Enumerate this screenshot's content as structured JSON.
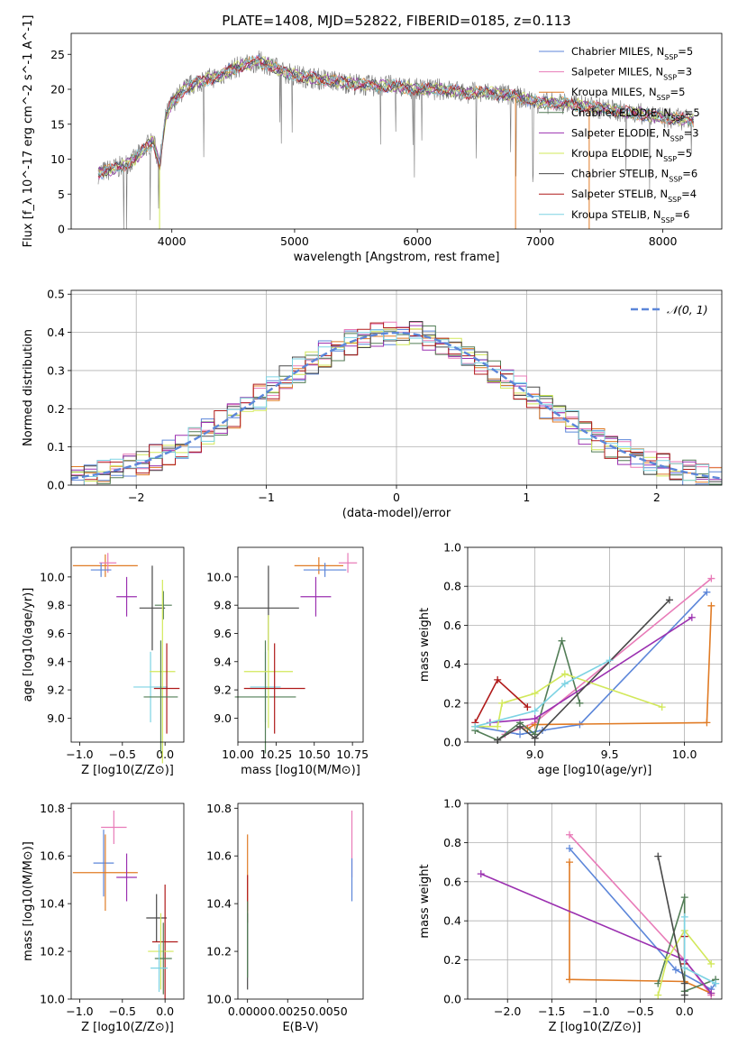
{
  "figure": {
    "title": "PLATE=1408, MJD=52822, FIBERID=0185, z=0.113"
  },
  "models": [
    {
      "name": "Chabrier MILES",
      "nssp": "5",
      "color": "#5c86d9"
    },
    {
      "name": "Salpeter MILES",
      "nssp": "3",
      "color": "#e87bb8"
    },
    {
      "name": "Kroupa MILES",
      "nssp": "5",
      "color": "#e07b25"
    },
    {
      "name": "Chabrier ELODIE",
      "nssp": "5",
      "color": "#527d56"
    },
    {
      "name": "Salpeter ELODIE",
      "nssp": "3",
      "color": "#9b30b0"
    },
    {
      "name": "Kroupa ELODIE",
      "nssp": "5",
      "color": "#d2e85a"
    },
    {
      "name": "Chabrier STELIB",
      "nssp": "6",
      "color": "#484848"
    },
    {
      "name": "Salpeter STELIB",
      "nssp": "4",
      "color": "#b01a1a"
    },
    {
      "name": "Kroupa STELIB",
      "nssp": "6",
      "color": "#7dd3e3"
    }
  ],
  "chart_data": [
    {
      "id": "spectrum",
      "type": "line",
      "title": "PLATE=1408, MJD=52822, FIBERID=0185, z=0.113",
      "xlabel": "wavelength [Angstrom, rest frame]",
      "ylabel": "Flux [f_λ 10^-17 erg cm^-2 s^-1 A^-1]",
      "xlim": [
        3180,
        8480
      ],
      "ylim": [
        0,
        28
      ],
      "xticks": [
        "4000",
        "5000",
        "6000",
        "7000",
        "8000"
      ],
      "yticks": [
        "0",
        "5",
        "10",
        "15",
        "20",
        "25"
      ],
      "spectrum_continuum": {
        "x": [
          3400,
          3500,
          3600,
          3700,
          3800,
          3850,
          3900,
          3950,
          4000,
          4100,
          4200,
          4300,
          4400,
          4500,
          4600,
          4700,
          4800,
          4900,
          5000,
          5200,
          5400,
          5600,
          5800,
          6000,
          6200,
          6400,
          6600,
          6800,
          7000,
          7200,
          7400,
          7600,
          7800,
          8000,
          8250
        ],
        "y": [
          8,
          8.5,
          9,
          10,
          12,
          12.5,
          9,
          16,
          18,
          20,
          21,
          21.5,
          22,
          23,
          23.5,
          24,
          23.5,
          22.5,
          22,
          21.5,
          21,
          20.5,
          20.5,
          20,
          20,
          19.5,
          19.5,
          19,
          18,
          18,
          17.5,
          17,
          16.5,
          16,
          15.5
        ]
      },
      "model_vertical_spikes_x": [
        3900,
        6800,
        7400
      ],
      "grid": false,
      "legend": "top-right"
    },
    {
      "id": "residual-histogram",
      "type": "line",
      "xlabel": "(data-model)/error",
      "ylabel": "Normed distribution",
      "xlim": [
        -2.5,
        2.5
      ],
      "ylim": [
        0,
        0.51
      ],
      "xticks": [
        "−2",
        "−1",
        "0",
        "1",
        "2"
      ],
      "yticks": [
        "0.0",
        "0.1",
        "0.2",
        "0.3",
        "0.4",
        "0.5"
      ],
      "series": [
        {
          "name": "𝒩(0, 1)",
          "function": "normal",
          "mean": 0,
          "sigma": 1
        }
      ],
      "histograms_bin_width": 0.1,
      "grid": true,
      "legend": "top-right"
    },
    {
      "id": "age-vs-Z",
      "type": "scatter",
      "xlabel": "Z [log10(Z/Z⊙)]",
      "ylabel": "age [log10(age/yr)]",
      "xlim": [
        -1.1,
        0.22
      ],
      "ylim": [
        8.83,
        10.21
      ],
      "xticks": [
        "−1.0",
        "−0.5",
        "0.0"
      ],
      "yticks": [
        "9.0",
        "9.2",
        "9.4",
        "9.6",
        "9.8",
        "10.0"
      ],
      "points": [
        {
          "model": "Kroupa MILES",
          "x": -0.7,
          "xerr": 0.38,
          "y": 10.08,
          "yerr": 0.08
        },
        {
          "model": "Salpeter MILES",
          "x": -0.67,
          "xerr": 0.1,
          "y": 10.1,
          "yerr": 0.07
        },
        {
          "model": "Chabrier MILES",
          "x": -0.75,
          "xerr": 0.12,
          "y": 10.05,
          "yerr": 0.05
        },
        {
          "model": "Salpeter ELODIE",
          "x": -0.45,
          "xerr": 0.12,
          "y": 9.86,
          "yerr": 0.14
        },
        {
          "model": "Chabrier STELIB",
          "x": -0.15,
          "xerr": 0.15,
          "y": 9.78,
          "yerr": 0.3
        },
        {
          "model": "Kroupa STELIB",
          "x": -0.17,
          "xerr": 0.2,
          "y": 9.22,
          "yerr": 0.25
        },
        {
          "model": "Chabrier ELODIE",
          "x": -0.02,
          "xerr": 0.1,
          "y": 9.8,
          "yerr": 0.1
        },
        {
          "model": "Kroupa ELODIE",
          "x": -0.03,
          "xerr": 0.15,
          "y": 9.33,
          "yerr": 0.65
        },
        {
          "model": "Salpeter STELIB",
          "x": 0.02,
          "xerr": 0.15,
          "y": 9.21,
          "yerr": 0.32
        },
        {
          "model": "Chabrier ELODIE",
          "x": -0.05,
          "xerr": 0.2,
          "y": 9.15,
          "yerr": 0.4
        }
      ]
    },
    {
      "id": "age-vs-mass",
      "type": "scatter",
      "xlabel": "mass [log10(M/M⊙)]",
      "ylabel": "",
      "xlim": [
        10.0,
        10.82
      ],
      "ylim": [
        8.83,
        10.21
      ],
      "xticks": [
        "10.00",
        "10.25",
        "10.50",
        "10.75"
      ],
      "yticks": [
        "9.0",
        "9.2",
        "9.4",
        "9.6",
        "9.8",
        "10.0"
      ],
      "points": [
        {
          "model": "Kroupa MILES",
          "x": 10.53,
          "xerr": 0.16,
          "y": 10.08,
          "yerr": 0.06
        },
        {
          "model": "Salpeter MILES",
          "x": 10.72,
          "xerr": 0.06,
          "y": 10.1,
          "yerr": 0.07
        },
        {
          "model": "Chabrier MILES",
          "x": 10.57,
          "xerr": 0.14,
          "y": 10.05,
          "yerr": 0.05
        },
        {
          "model": "Salpeter ELODIE",
          "x": 10.51,
          "xerr": 0.1,
          "y": 9.86,
          "yerr": 0.14
        },
        {
          "model": "Chabrier STELIB",
          "x": 10.2,
          "xerr": 0.2,
          "y": 9.78,
          "yerr": 0.3
        },
        {
          "model": "Kroupa STELIB",
          "x": 10.18,
          "xerr": 0.1,
          "y": 9.22,
          "yerr": 0.25
        },
        {
          "model": "Chabrier ELODIE",
          "x": 10.18,
          "xerr": 0.2,
          "y": 9.15,
          "yerr": 0.4
        },
        {
          "model": "Kroupa ELODIE",
          "x": 10.2,
          "xerr": 0.16,
          "y": 9.33,
          "yerr": 0.4
        },
        {
          "model": "Salpeter STELIB",
          "x": 10.24,
          "xerr": 0.2,
          "y": 9.21,
          "yerr": 0.32
        }
      ]
    },
    {
      "id": "weight-vs-age",
      "type": "line",
      "xlabel": "age [log10(age/yr)]",
      "ylabel": "mass weight",
      "xlim": [
        8.55,
        10.25
      ],
      "ylim": [
        0,
        1
      ],
      "xticks": [
        "9.0",
        "9.5",
        "10.0"
      ],
      "yticks": [
        "0.0",
        "0.2",
        "0.4",
        "0.6",
        "0.8",
        "1.0"
      ],
      "grid": true,
      "series": [
        {
          "name": "Chabrier MILES",
          "x": [
            8.6,
            8.9,
            9.05,
            9.3,
            10.15
          ],
          "y": [
            0.08,
            0.04,
            0.06,
            0.09,
            0.77
          ]
        },
        {
          "name": "Salpeter MILES",
          "x": [
            8.8,
            9.0,
            10.18
          ],
          "y": [
            0.04,
            0.1,
            0.84
          ]
        },
        {
          "name": "Kroupa MILES",
          "x": [
            8.95,
            9.0,
            10.15,
            10.18
          ],
          "y": [
            0.07,
            0.09,
            0.1,
            0.7
          ]
        },
        {
          "name": "Chabrier ELODIE",
          "x": [
            8.6,
            8.75,
            8.9,
            9.0,
            9.18,
            9.3
          ],
          "y": [
            0.06,
            0.01,
            0.1,
            0.04,
            0.52,
            0.2
          ]
        },
        {
          "name": "Salpeter ELODIE",
          "x": [
            8.7,
            9.0,
            10.05
          ],
          "y": [
            0.1,
            0.12,
            0.64
          ]
        },
        {
          "name": "Kroupa ELODIE",
          "x": [
            8.6,
            8.75,
            8.78,
            9.0,
            9.2,
            9.85
          ],
          "y": [
            0.08,
            0.08,
            0.2,
            0.25,
            0.35,
            0.18
          ]
        },
        {
          "name": "Chabrier STELIB",
          "x": [
            8.75,
            8.9,
            9.0,
            9.9
          ],
          "y": [
            0.01,
            0.08,
            0.02,
            0.73
          ]
        },
        {
          "name": "Salpeter STELIB",
          "x": [
            8.6,
            8.75,
            8.95
          ],
          "y": [
            0.1,
            0.32,
            0.18
          ]
        },
        {
          "name": "Kroupa STELIB",
          "x": [
            8.6,
            9.0,
            9.2,
            9.5
          ],
          "y": [
            0.08,
            0.16,
            0.3,
            0.42
          ]
        }
      ]
    },
    {
      "id": "mass-vs-Z",
      "type": "scatter",
      "xlabel": "Z [log10(Z/Z⊙)]",
      "ylabel": "mass [log10(M/M⊙)]",
      "xlim": [
        -1.1,
        0.22
      ],
      "ylim": [
        10.0,
        10.82
      ],
      "xticks": [
        "−1.0",
        "−0.5",
        "0.0"
      ],
      "yticks": [
        "10.0",
        "10.2",
        "10.4",
        "10.6",
        "10.8"
      ],
      "points": [
        {
          "model": "Salpeter MILES",
          "x": -0.6,
          "xerr": 0.15,
          "y": 10.72,
          "yerr": 0.07
        },
        {
          "model": "Chabrier MILES",
          "x": -0.72,
          "xerr": 0.12,
          "y": 10.57,
          "yerr": 0.14
        },
        {
          "model": "Kroupa MILES",
          "x": -0.7,
          "xerr": 0.38,
          "y": 10.53,
          "yerr": 0.16
        },
        {
          "model": "Salpeter ELODIE",
          "x": -0.45,
          "xerr": 0.12,
          "y": 10.51,
          "yerr": 0.1
        },
        {
          "model": "Chabrier STELIB",
          "x": -0.1,
          "xerr": 0.12,
          "y": 10.34,
          "yerr": 0.1
        },
        {
          "model": "Salpeter STELIB",
          "x": 0.0,
          "xerr": 0.15,
          "y": 10.24,
          "yerr": 0.24
        },
        {
          "model": "Kroupa ELODIE",
          "x": -0.05,
          "xerr": 0.15,
          "y": 10.2,
          "yerr": 0.16
        },
        {
          "model": "Chabrier ELODIE",
          "x": -0.02,
          "xerr": 0.1,
          "y": 10.17,
          "yerr": 0.15
        },
        {
          "model": "Kroupa STELIB",
          "x": -0.07,
          "xerr": 0.1,
          "y": 10.13,
          "yerr": 0.1
        }
      ]
    },
    {
      "id": "mass-vs-EBV",
      "type": "scatter",
      "xlabel": "E(B-V)",
      "ylabel": "",
      "xlim": [
        -0.0006,
        0.0072
      ],
      "ylim": [
        10.0,
        10.82
      ],
      "xticks": [
        "0.0000",
        "0.0025",
        "0.0050"
      ],
      "yticks": [
        "10.0",
        "10.2",
        "10.4",
        "10.6",
        "10.8"
      ],
      "points": [
        {
          "model": "Kroupa MILES",
          "x": 0.0,
          "y": 10.53,
          "yerr": 0.16
        },
        {
          "model": "Salpeter STELIB",
          "x": 0.0,
          "y": 10.42,
          "yerr": 0.1
        },
        {
          "model": "Chabrier STELIB",
          "x": 0.0,
          "y": 10.2,
          "yerr": 0.16
        },
        {
          "model": "Chabrier ELODIE",
          "x": 0.0,
          "y": 10.25,
          "yerr": 0.16
        },
        {
          "model": "Salpeter MILES",
          "x": 0.0065,
          "y": 10.65,
          "yerr": 0.14
        },
        {
          "model": "Chabrier MILES",
          "x": 0.0065,
          "y": 10.5,
          "yerr": 0.09
        }
      ]
    },
    {
      "id": "weight-vs-Z",
      "type": "line",
      "xlabel": "Z [log10(Z/Z⊙)]",
      "ylabel": "mass weight",
      "xlim": [
        -2.45,
        0.42
      ],
      "ylim": [
        0,
        1
      ],
      "xticks": [
        "−2.0",
        "−1.5",
        "−1.0",
        "−0.5",
        "0.0"
      ],
      "yticks": [
        "0.0",
        "0.2",
        "0.4",
        "0.6",
        "0.8",
        "1.0"
      ],
      "grid": true,
      "series": [
        {
          "name": "Chabrier MILES",
          "x": [
            -1.3,
            -0.1,
            0.3,
            0.35
          ],
          "y": [
            0.77,
            0.15,
            0.05,
            0.08
          ]
        },
        {
          "name": "Salpeter MILES",
          "x": [
            -1.3,
            0.0,
            0.3
          ],
          "y": [
            0.84,
            0.2,
            0.02
          ]
        },
        {
          "name": "Kroupa MILES",
          "x": [
            -1.3,
            -1.3,
            0.0,
            0.3
          ],
          "y": [
            0.7,
            0.1,
            0.09,
            0.03
          ]
        },
        {
          "name": "Chabrier ELODIE",
          "x": [
            -0.3,
            0.0,
            0.0,
            0.35
          ],
          "y": [
            0.08,
            0.52,
            0.04,
            0.1
          ]
        },
        {
          "name": "Salpeter ELODIE",
          "x": [
            -2.3,
            0.0,
            0.3
          ],
          "y": [
            0.64,
            0.2,
            0.03
          ]
        },
        {
          "name": "Kroupa ELODIE",
          "x": [
            -0.3,
            -0.2,
            0.0,
            0.3
          ],
          "y": [
            0.02,
            0.2,
            0.35,
            0.18
          ]
        },
        {
          "name": "Chabrier STELIB",
          "x": [
            -0.3,
            0.0,
            0.0
          ],
          "y": [
            0.73,
            0.08,
            0.02
          ]
        },
        {
          "name": "Salpeter STELIB",
          "x": [
            0.0,
            0.0
          ],
          "y": [
            0.32,
            0.18
          ]
        },
        {
          "name": "Kroupa STELIB",
          "x": [
            0.0,
            0.0,
            0.35
          ],
          "y": [
            0.42,
            0.16,
            0.08
          ]
        }
      ]
    }
  ]
}
